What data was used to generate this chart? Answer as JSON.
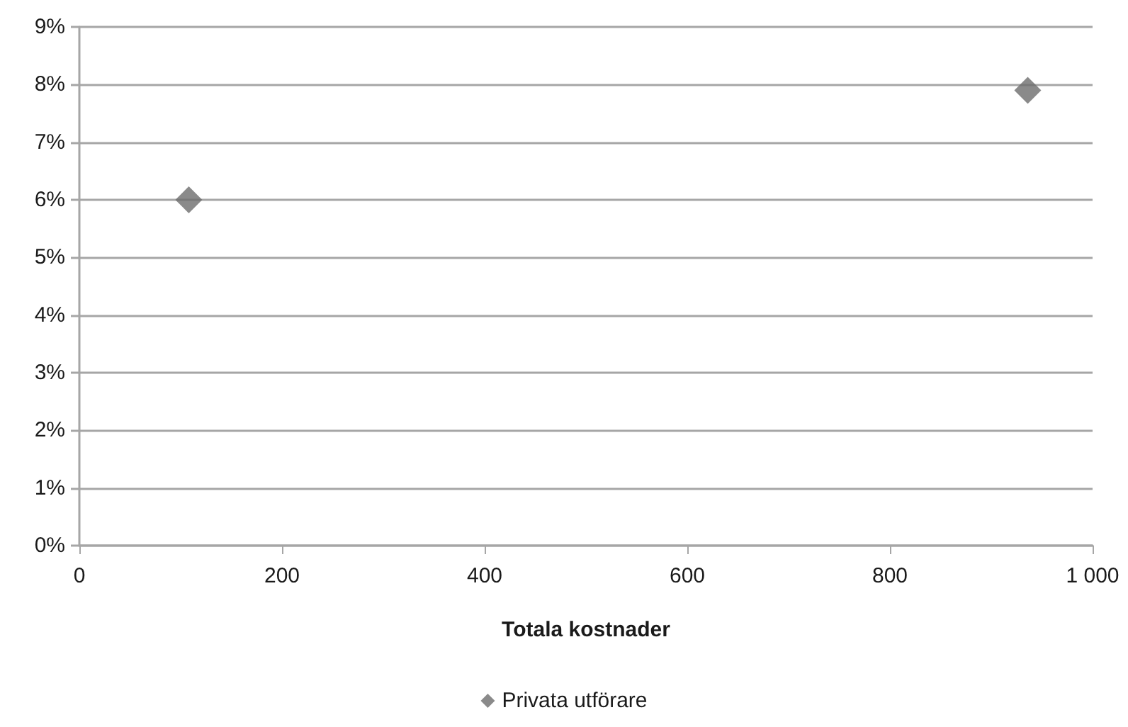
{
  "chart_data": {
    "type": "scatter",
    "xlabel": "Totala kostnader",
    "x": [
      108,
      936
    ],
    "series": [
      {
        "name": "Privata utförare",
        "color": "#6d6d6d",
        "values": [
          6,
          7.9
        ]
      }
    ],
    "xlim": [
      0,
      1000
    ],
    "xticks": [
      0,
      200,
      400,
      600,
      800,
      {
        "value": 1000,
        "label": "1 000"
      }
    ],
    "ylim": [
      0,
      9
    ],
    "yticks": [
      {
        "value": 0,
        "label": "0%"
      },
      {
        "value": 1,
        "label": "1%"
      },
      {
        "value": 2,
        "label": "2%"
      },
      {
        "value": 3,
        "label": "3%"
      },
      {
        "value": 4,
        "label": "4%"
      },
      {
        "value": 5,
        "label": "5%"
      },
      {
        "value": 6,
        "label": "6%"
      },
      {
        "value": 7,
        "label": "7%"
      },
      {
        "value": 8,
        "label": "8%"
      },
      {
        "value": 9,
        "label": "9%"
      }
    ],
    "grid": "y",
    "legend": "bottom",
    "marker": "diamond"
  }
}
